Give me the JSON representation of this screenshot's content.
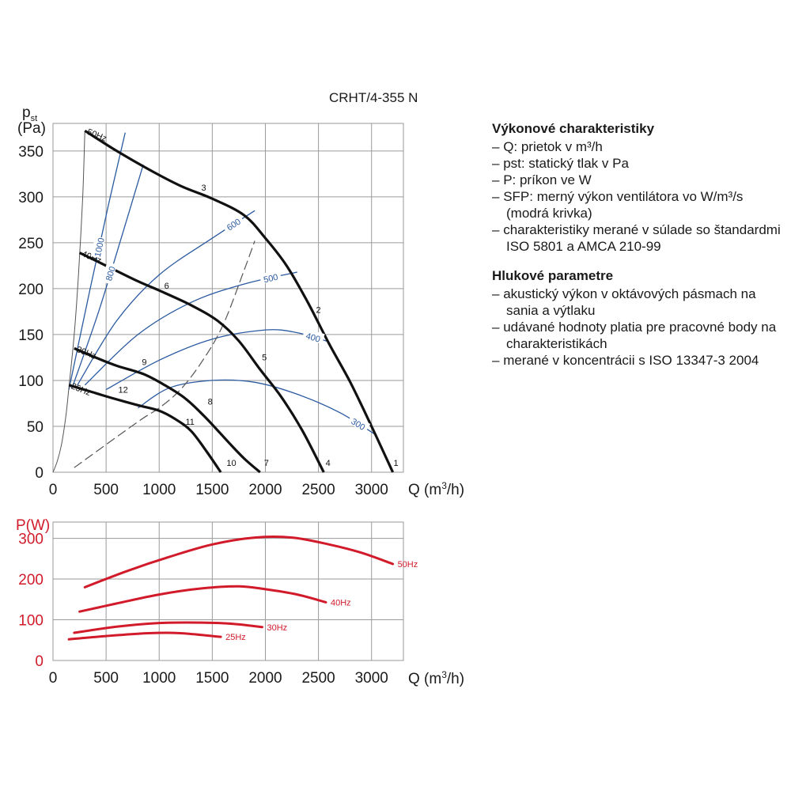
{
  "model": "CRHT/4-355 N",
  "info": {
    "sections": [
      {
        "title": "Výkonové charakteristiky",
        "items": [
          "Q: prietok v m³/h",
          "pst: statický tlak v Pa",
          "P: príkon ve W",
          "SFP: merný výkon ventilátora vo W/m³/s (modrá krivka)",
          "charakteristiky merané v súlade so štandardmi ISO 5801 a AMCA 210-99"
        ]
      },
      {
        "title": "Hlukové parametre",
        "items": [
          "akustický výkon v oktávových pásmach na sania a výtlaku",
          "udávané hodnoty platia pre pracovné body na charakteristikách",
          "merané v koncentrácii s ISO 13347-3 2004"
        ]
      }
    ]
  },
  "chart_data": [
    {
      "type": "line",
      "ylabel": "pst (Pa)",
      "xlabel": "Q (m³/h)",
      "xlim": [
        0,
        3300
      ],
      "ylim": [
        0,
        380
      ],
      "xticks": [
        0,
        500,
        1000,
        1500,
        2000,
        2500,
        3000
      ],
      "yticks": [
        0,
        50,
        100,
        150,
        200,
        250,
        300,
        350
      ],
      "grid": true,
      "colors": {
        "fan": "#111111",
        "sfp": "#2b5aa0",
        "system": "#555555"
      },
      "fan_curves": [
        {
          "name": "50Hz",
          "points": [
            [
              300,
              372
            ],
            [
              600,
              350
            ],
            [
              900,
              330
            ],
            [
              1200,
              312
            ],
            [
              1500,
              298
            ],
            [
              1800,
              280
            ],
            [
              2000,
              255
            ],
            [
              2200,
              225
            ],
            [
              2400,
              185
            ],
            [
              2600,
              140
            ],
            [
              2800,
              98
            ],
            [
              3000,
              50
            ],
            [
              3200,
              0
            ]
          ]
        },
        {
          "name": "40Hz",
          "points": [
            [
              250,
              239
            ],
            [
              500,
              225
            ],
            [
              800,
              208
            ],
            [
              1000,
              198
            ],
            [
              1300,
              182
            ],
            [
              1550,
              165
            ],
            [
              1750,
              143
            ],
            [
              1950,
              112
            ],
            [
              2150,
              82
            ],
            [
              2350,
              45
            ],
            [
              2550,
              0
            ]
          ]
        },
        {
          "name": "30Hz",
          "points": [
            [
              200,
              135
            ],
            [
              400,
              125
            ],
            [
              600,
              116
            ],
            [
              850,
              107
            ],
            [
              1050,
              95
            ],
            [
              1250,
              80
            ],
            [
              1450,
              58
            ],
            [
              1650,
              33
            ],
            [
              1800,
              15
            ],
            [
              1950,
              0
            ]
          ]
        },
        {
          "name": "25Hz",
          "points": [
            [
              150,
              95
            ],
            [
              350,
              88
            ],
            [
              550,
              81
            ],
            [
              800,
              73
            ],
            [
              1000,
              67
            ],
            [
              1150,
              58
            ],
            [
              1300,
              45
            ],
            [
              1450,
              22
            ],
            [
              1580,
              0
            ]
          ]
        }
      ],
      "system_curve": [
        [
          200,
          5
        ],
        [
          800,
          55
        ],
        [
          1000,
          70
        ],
        [
          1200,
          90
        ],
        [
          1400,
          120
        ],
        [
          1600,
          160
        ],
        [
          1800,
          220
        ],
        [
          1900,
          252
        ]
      ],
      "startup_curve": [
        [
          0,
          0
        ],
        [
          40,
          12
        ],
        [
          80,
          30
        ],
        [
          120,
          60
        ],
        [
          150,
          92
        ],
        [
          200,
          150
        ],
        [
          240,
          215
        ],
        [
          280,
          300
        ],
        [
          300,
          372
        ]
      ],
      "sfp_curves": [
        {
          "name": "1000",
          "points": [
            [
              150,
              90
            ],
            [
              350,
              200
            ],
            [
              520,
              290
            ],
            [
              680,
              370
            ]
          ]
        },
        {
          "name": "800",
          "points": [
            [
              180,
              92
            ],
            [
              430,
              175
            ],
            [
              650,
              258
            ],
            [
              850,
              335
            ]
          ]
        },
        {
          "name": "600",
          "points": [
            [
              230,
              95
            ],
            [
              600,
              165
            ],
            [
              1000,
              215
            ],
            [
              1500,
              255
            ],
            [
              1900,
              285
            ]
          ]
        },
        {
          "name": "500",
          "points": [
            [
              300,
              95
            ],
            [
              800,
              150
            ],
            [
              1300,
              185
            ],
            [
              1800,
              205
            ],
            [
              2300,
              218
            ]
          ]
        },
        {
          "name": "400",
          "points": [
            [
              500,
              90
            ],
            [
              1000,
              122
            ],
            [
              1500,
              145
            ],
            [
              2000,
              155
            ],
            [
              2300,
              152
            ],
            [
              2600,
              142
            ]
          ]
        },
        {
          "name": "300",
          "points": [
            [
              800,
              70
            ],
            [
              1100,
              92
            ],
            [
              1500,
              100
            ],
            [
              1900,
              98
            ],
            [
              2300,
              85
            ],
            [
              2700,
              65
            ],
            [
              3050,
              40
            ]
          ]
        }
      ],
      "point_labels": [
        {
          "text": "1",
          "x": 3230,
          "y": 5
        },
        {
          "text": "2",
          "x": 2500,
          "y": 172
        },
        {
          "text": "3",
          "x": 1420,
          "y": 305
        },
        {
          "text": "4",
          "x": 2590,
          "y": 5
        },
        {
          "text": "5",
          "x": 1990,
          "y": 120
        },
        {
          "text": "6",
          "x": 1070,
          "y": 198
        },
        {
          "text": "7",
          "x": 2010,
          "y": 5
        },
        {
          "text": "8",
          "x": 1480,
          "y": 72
        },
        {
          "text": "9",
          "x": 860,
          "y": 115
        },
        {
          "text": "10",
          "x": 1680,
          "y": 5
        },
        {
          "text": "11",
          "x": 1290,
          "y": 50
        },
        {
          "text": "12",
          "x": 660,
          "y": 85
        }
      ]
    },
    {
      "type": "line",
      "ylabel": "P(W)",
      "xlabel": "Q (m³/h)",
      "xlim": [
        0,
        3300
      ],
      "ylim": [
        0,
        340
      ],
      "xticks": [
        0,
        500,
        1000,
        1500,
        2000,
        2500,
        3000
      ],
      "yticks": [
        0,
        100,
        200,
        300
      ],
      "grid": true,
      "colors": {
        "series": "#d11a2a"
      },
      "series": [
        {
          "name": "50Hz",
          "points": [
            [
              300,
              180
            ],
            [
              700,
              220
            ],
            [
              1100,
              255
            ],
            [
              1500,
              285
            ],
            [
              1900,
              302
            ],
            [
              2250,
              302
            ],
            [
              2600,
              285
            ],
            [
              2900,
              265
            ],
            [
              3200,
              237
            ]
          ]
        },
        {
          "name": "40Hz",
          "points": [
            [
              250,
              120
            ],
            [
              600,
              140
            ],
            [
              1000,
              162
            ],
            [
              1400,
              177
            ],
            [
              1750,
              182
            ],
            [
              2000,
              175
            ],
            [
              2300,
              162
            ],
            [
              2570,
              143
            ]
          ]
        },
        {
          "name": "30Hz",
          "points": [
            [
              200,
              68
            ],
            [
              600,
              83
            ],
            [
              1000,
              92
            ],
            [
              1400,
              93
            ],
            [
              1700,
              90
            ],
            [
              1970,
              82
            ]
          ]
        },
        {
          "name": "25Hz",
          "points": [
            [
              150,
              52
            ],
            [
              500,
              60
            ],
            [
              900,
              67
            ],
            [
              1200,
              67
            ],
            [
              1580,
              58
            ]
          ]
        }
      ]
    }
  ]
}
